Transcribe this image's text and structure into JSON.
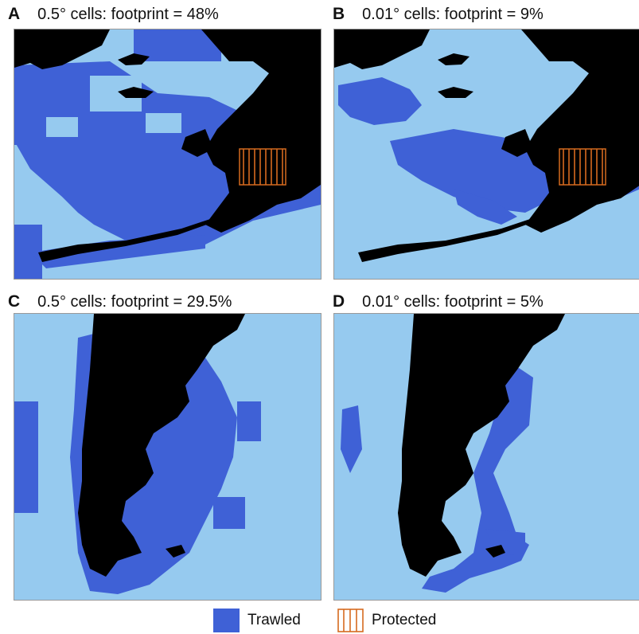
{
  "colors": {
    "ocean": "#96caef",
    "land": "#000000",
    "trawled": "#3f61d6",
    "protected": "#d66a1f"
  },
  "panels": [
    {
      "letter": "A",
      "title": "0.5° cells: footprint = 48%"
    },
    {
      "letter": "B",
      "title": "0.01°  cells: footprint = 9%"
    },
    {
      "letter": "C",
      "title": "0.5° cells: footprint = 29.5%"
    },
    {
      "letter": "D",
      "title": "0.01°  cells: footprint = 5%"
    }
  ],
  "legend": {
    "trawled": "Trawled",
    "protected": "Protected"
  }
}
